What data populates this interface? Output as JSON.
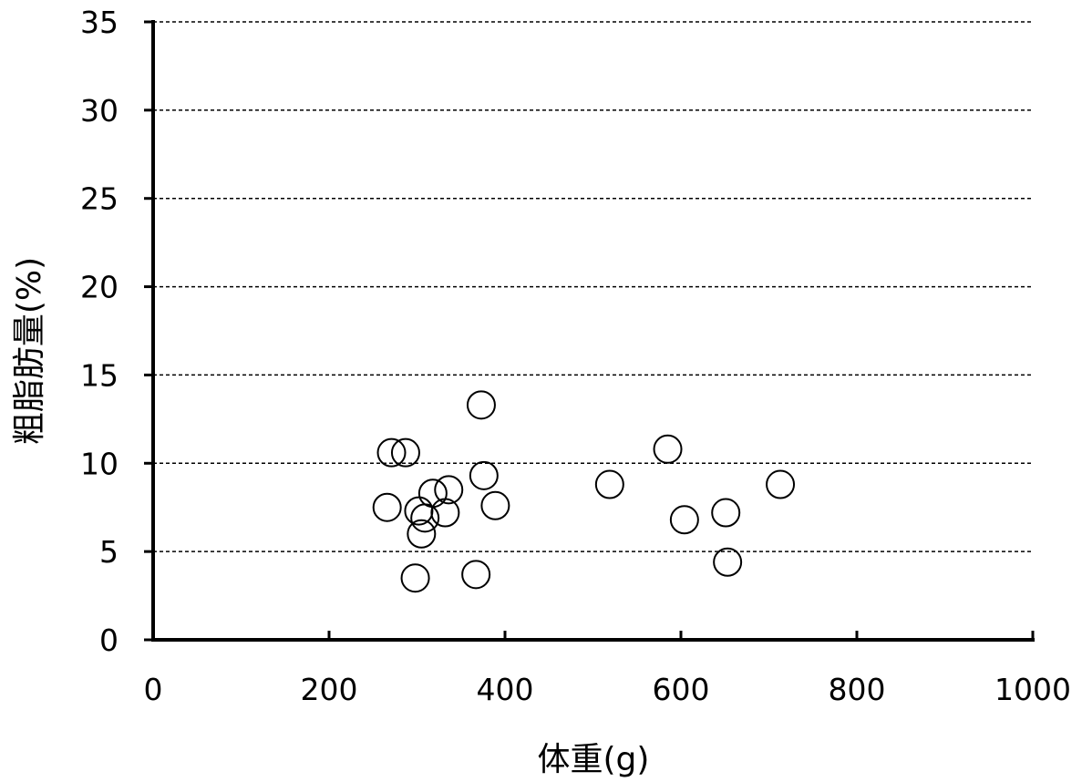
{
  "chart_data": {
    "type": "scatter",
    "title": "",
    "xlabel": "体重(g)",
    "ylabel": "粗脂肪量(%)",
    "xlim": [
      0,
      1000
    ],
    "ylim": [
      0,
      35
    ],
    "x_ticks": [
      "0",
      "200",
      "400",
      "600",
      "800",
      "1000"
    ],
    "y_ticks": [
      "0",
      "5",
      "10",
      "15",
      "20",
      "25",
      "30",
      "35"
    ],
    "grid": "horizontal-dashed",
    "marker": "open-circle",
    "points": [
      {
        "x": 266,
        "y": 7.5
      },
      {
        "x": 271,
        "y": 10.6
      },
      {
        "x": 287,
        "y": 10.6
      },
      {
        "x": 298,
        "y": 3.5
      },
      {
        "x": 302,
        "y": 7.3
      },
      {
        "x": 305,
        "y": 6.0
      },
      {
        "x": 309,
        "y": 6.9
      },
      {
        "x": 318,
        "y": 8.3
      },
      {
        "x": 332,
        "y": 7.2
      },
      {
        "x": 336,
        "y": 8.5
      },
      {
        "x": 367,
        "y": 3.7
      },
      {
        "x": 373,
        "y": 13.3
      },
      {
        "x": 376,
        "y": 9.3
      },
      {
        "x": 389,
        "y": 7.6
      },
      {
        "x": 519,
        "y": 8.8
      },
      {
        "x": 585,
        "y": 10.8
      },
      {
        "x": 604,
        "y": 6.8
      },
      {
        "x": 651,
        "y": 7.2
      },
      {
        "x": 653,
        "y": 4.4
      },
      {
        "x": 713,
        "y": 8.8
      }
    ]
  }
}
